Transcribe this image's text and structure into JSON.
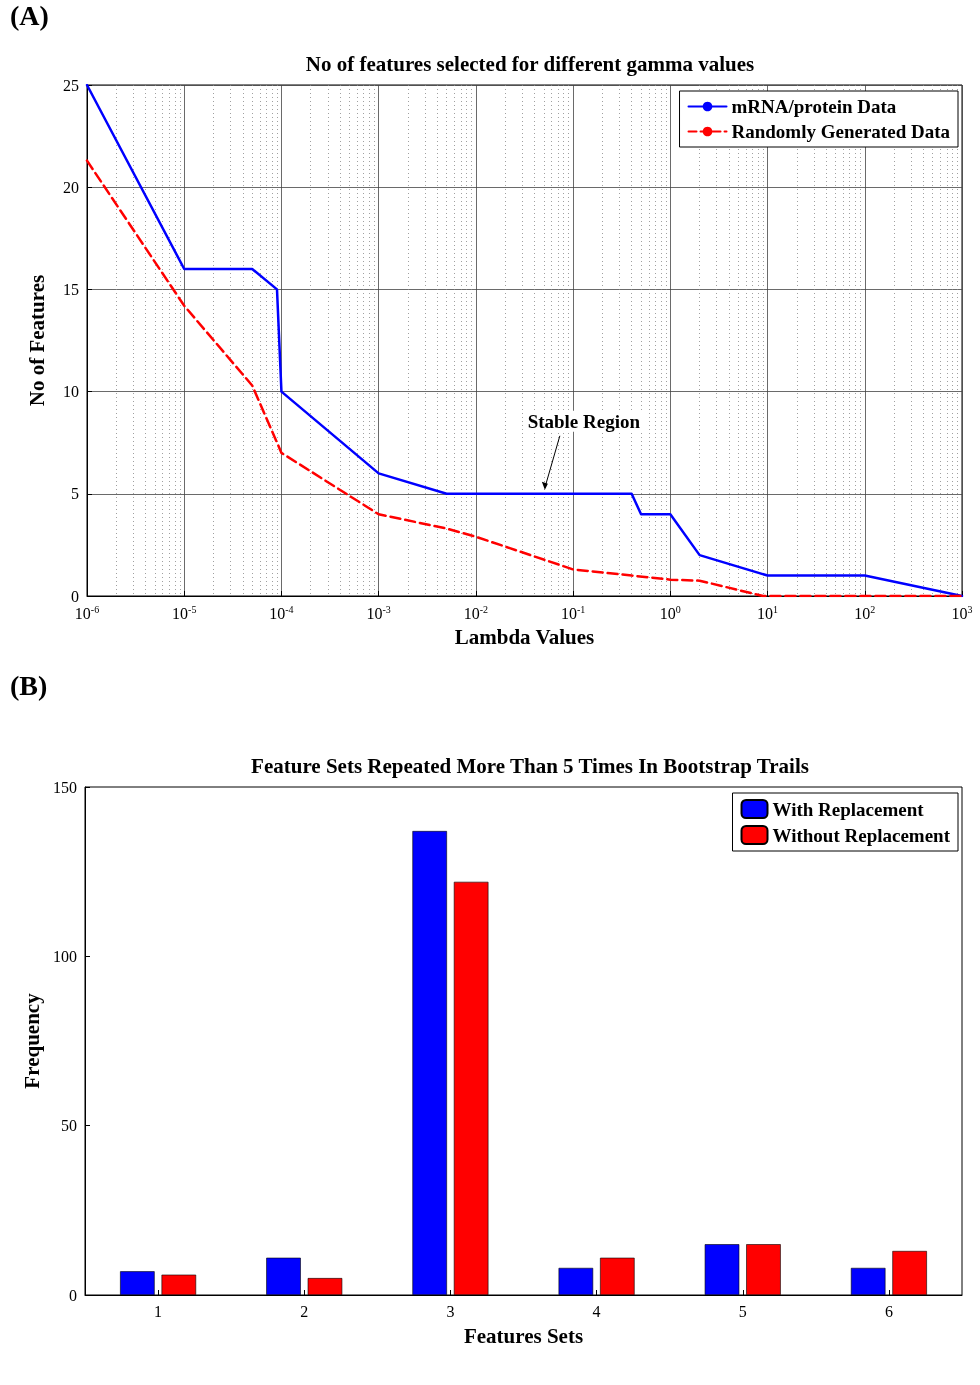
{
  "chart_data": [
    {
      "type": "line",
      "title": "No of features selected for different gamma values",
      "xlabel": "Lambda Values",
      "ylabel": "No of Features",
      "log": "x",
      "grid": true,
      "legend": "top right",
      "marker": "none",
      "xlim": [
        1e-06,
        1000
      ],
      "xticks": [
        {
          "value": 1e-06,
          "label": "10$^{-6}$"
        },
        {
          "value": 1e-05,
          "label": "10$^{-5}$"
        },
        {
          "value": 0.0001,
          "label": "10$^{-4}$"
        },
        {
          "value": 0.001,
          "label": "10$^{-3}$"
        },
        {
          "value": 0.01,
          "label": "10$^{-2}$"
        },
        {
          "value": 0.1,
          "label": "10$^{-1}$"
        },
        {
          "value": 1,
          "label": "10$^{0}$"
        },
        {
          "value": 10,
          "label": "10$^{1}$"
        },
        {
          "value": 100,
          "label": "10$^{2}$"
        },
        {
          "value": 1000,
          "label": "10$^{3}$"
        }
      ],
      "ylim": [
        0,
        25
      ],
      "yticks": [
        0,
        5,
        10,
        15,
        20,
        25
      ],
      "annotations": [
        "(A)",
        {
          "text": "Stable Region",
          "x": 0.05,
          "y": 5
        }
      ],
      "series": [
        {
          "name": "mRNA/protein Data",
          "color": "#0000ff",
          "line_style": "solid",
          "x": [
            1e-06,
            1e-05,
            5e-05,
            9e-05,
            0.0001,
            0.001,
            0.005,
            0.4,
            0.5,
            1,
            2,
            10,
            100,
            1000
          ],
          "values": [
            25,
            16,
            16,
            15,
            10,
            6,
            5,
            5,
            4,
            4,
            2,
            1,
            1,
            0
          ]
        },
        {
          "name": "Randomly Generated Data",
          "color": "#ff0000",
          "line_style": "dashed",
          "x": [
            1e-06,
            1e-05,
            5e-05,
            0.0001,
            0.001,
            0.005,
            0.01,
            0.1,
            0.4,
            1,
            2,
            9,
            1000
          ],
          "values": [
            21.3,
            14.2,
            10.3,
            7,
            4,
            3.3,
            2.9,
            1.3,
            1,
            0.8,
            0.75,
            0,
            0
          ]
        }
      ]
    },
    {
      "type": "bar",
      "title": "Feature Sets Repeated More Than 5 Times In Bootstrap Trails",
      "xlabel": "Features Sets",
      "ylabel": "Frequency",
      "grid": false,
      "legend": "top right",
      "categories": [
        "1",
        "2",
        "3",
        "4",
        "5",
        "6"
      ],
      "ylim": [
        0,
        150
      ],
      "yticks": [
        0,
        50,
        100,
        150
      ],
      "annotations": [
        "(B)"
      ],
      "series": [
        {
          "name": "With Replacement",
          "color": "#0000ff",
          "values": [
            7,
            11,
            137,
            8,
            15,
            8
          ]
        },
        {
          "name": "Without Replacement",
          "color": "#ff0000",
          "values": [
            6,
            5,
            122,
            11,
            15,
            13
          ]
        }
      ]
    }
  ]
}
